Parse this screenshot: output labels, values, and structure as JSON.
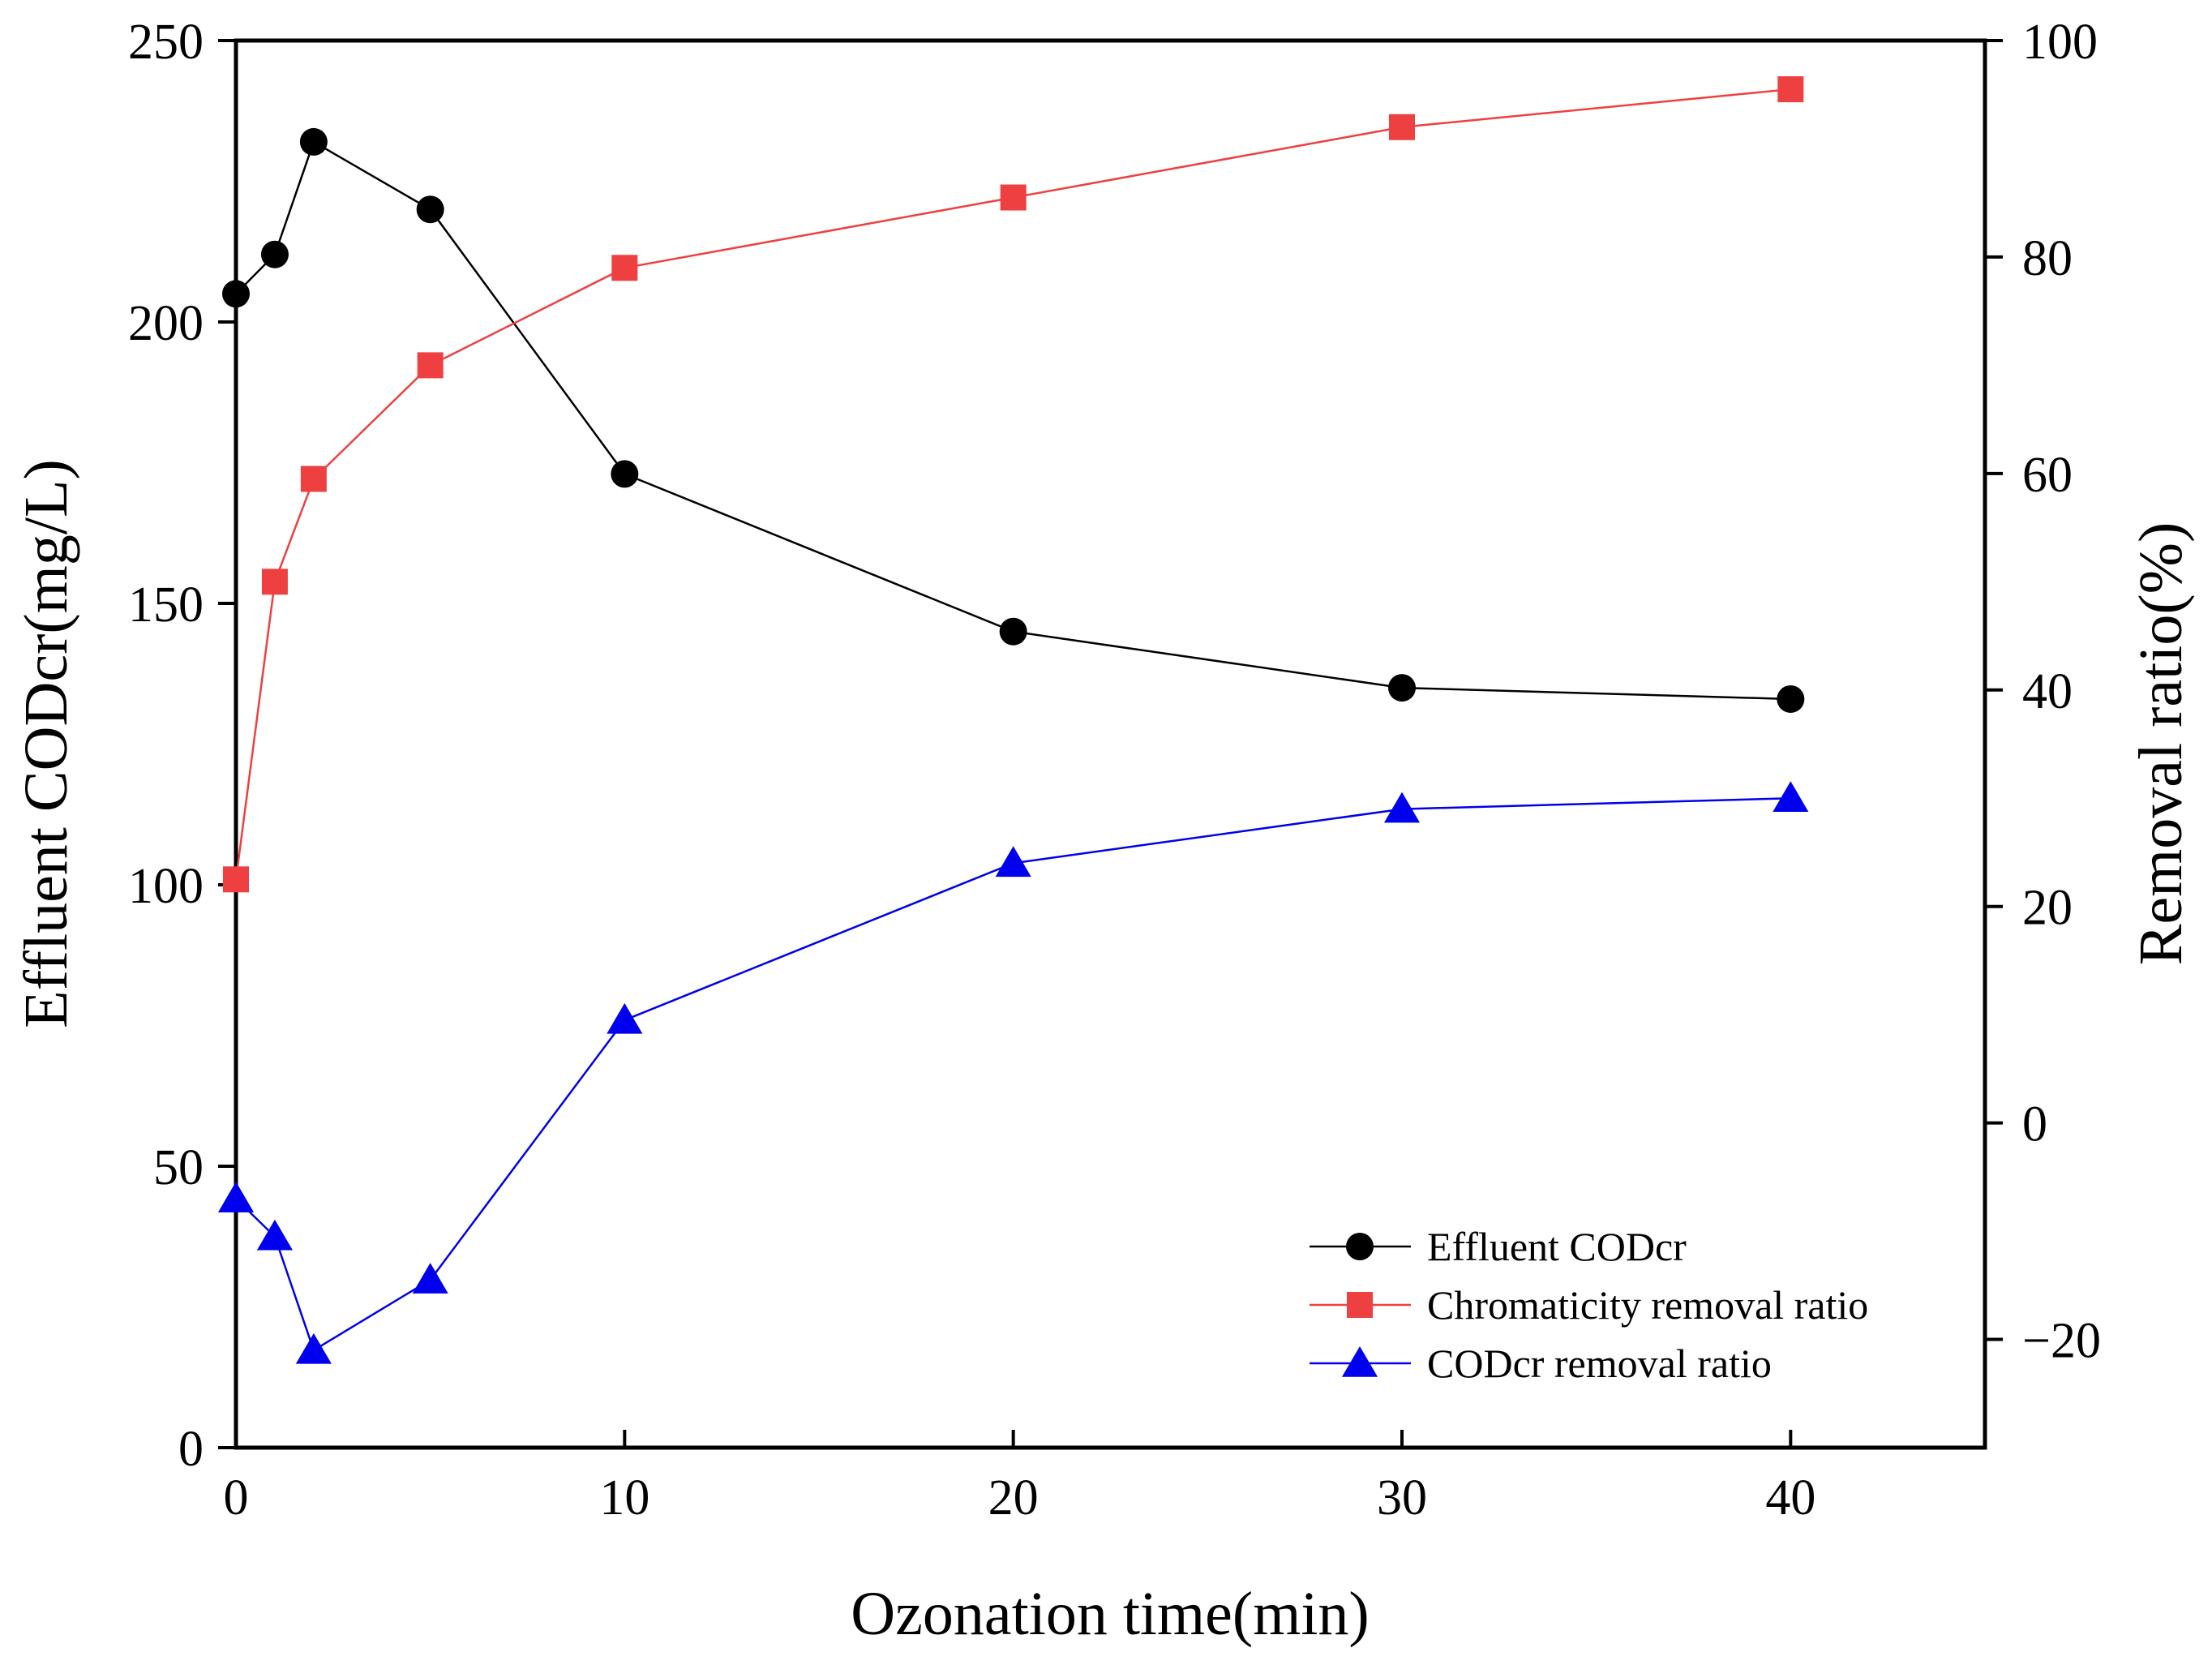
{
  "chart_data": {
    "type": "line",
    "title": "",
    "xlabel": "Ozonation time(min)",
    "ylabel_left": "Effluent CODcr(mg/L)",
    "ylabel_right": "Removal ratio(%)",
    "xlim": [
      0,
      45
    ],
    "ylim_left": [
      0,
      250
    ],
    "ylim_right": [
      -30,
      100
    ],
    "x_ticks": [
      0,
      10,
      20,
      30,
      40
    ],
    "x_tick_labels": [
      "0",
      "10",
      "20",
      "30",
      "40"
    ],
    "y_left_ticks": [
      0,
      50,
      100,
      150,
      200,
      250
    ],
    "y_left_tick_labels": [
      "0",
      "50",
      "100",
      "150",
      "200",
      "250"
    ],
    "y_right_ticks": [
      -20,
      0,
      20,
      40,
      60,
      80,
      100
    ],
    "y_right_tick_labels": [
      "−20",
      "0",
      "20",
      "40",
      "60",
      "80",
      "100"
    ],
    "x": [
      0,
      1,
      2,
      5,
      10,
      20,
      30,
      40
    ],
    "grid": false,
    "legend_position": "bottom-right",
    "series": [
      {
        "name": "Effluent CODcr",
        "axis": "left",
        "marker": "circle",
        "color": "#000000",
        "values": [
          205,
          212,
          232,
          220,
          173,
          145,
          135,
          133
        ]
      },
      {
        "name": "Chromaticity removal ratio",
        "axis": "right",
        "marker": "square",
        "color": "#ee4040",
        "values": [
          22.5,
          50,
          59.5,
          70,
          79,
          85.5,
          92,
          95.5
        ]
      },
      {
        "name": "CODcr removal ratio",
        "axis": "right",
        "marker": "triangle",
        "color": "#0000ee",
        "values": [
          -7,
          -10.5,
          -21,
          -14.5,
          9.5,
          24,
          29,
          30
        ]
      }
    ]
  }
}
